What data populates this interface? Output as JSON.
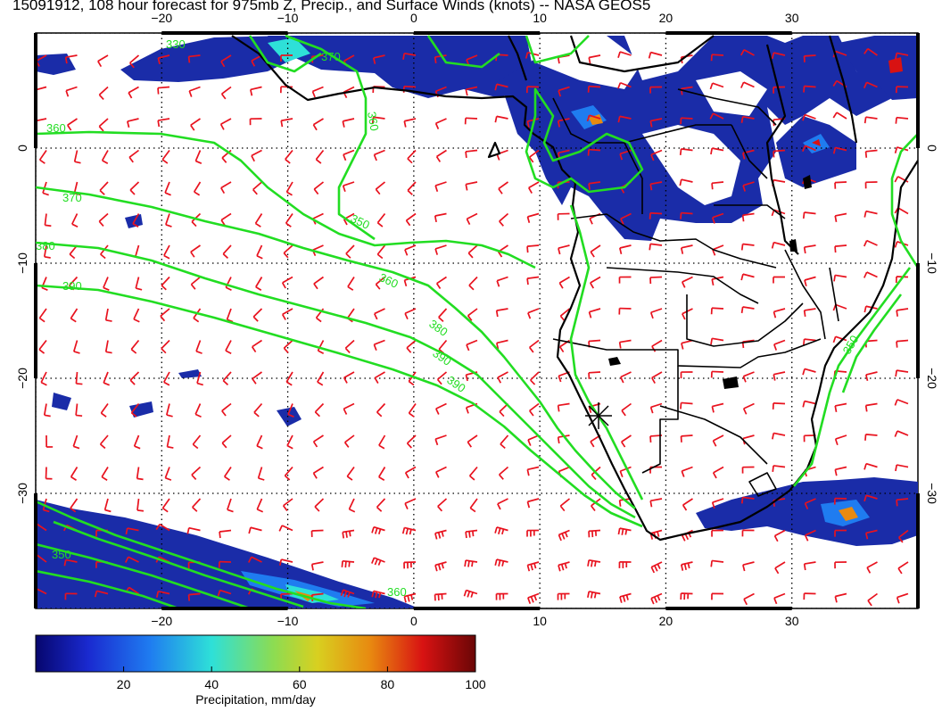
{
  "title": "15091912, 108 hour forecast for 975mb Z, Precip., and Surface Winds (knots) -- NASA GEOS5",
  "map": {
    "lon_range": [
      -30,
      40
    ],
    "lat_range": [
      -40,
      10
    ],
    "lon_ticks": [
      {
        "value": -20,
        "label": "−20"
      },
      {
        "value": -10,
        "label": "−10"
      },
      {
        "value": 0,
        "label": "0"
      },
      {
        "value": 10,
        "label": "10"
      },
      {
        "value": 20,
        "label": "20"
      },
      {
        "value": 30,
        "label": "30"
      }
    ],
    "lat_ticks": [
      {
        "value": 0,
        "label": "0"
      },
      {
        "value": -10,
        "label": "−10"
      },
      {
        "value": -20,
        "label": "−20"
      },
      {
        "value": -30,
        "label": "−30"
      }
    ],
    "contour_labels": [
      "330",
      "370",
      "360",
      "350",
      "370",
      "380",
      "390",
      "360",
      "380",
      "390",
      "390",
      "360",
      "350",
      "360",
      "350"
    ],
    "station_marker": {
      "lon": 15,
      "lat": -23.5
    },
    "colors": {
      "precip_low": "#1a2ca8",
      "contour": "#22dd22",
      "wind_barb": "#e8121e",
      "coast": "#000000"
    }
  },
  "colorbar": {
    "caption": "Precipitation, mm/day",
    "range": [
      0,
      100
    ],
    "tick_labels": [
      "20",
      "40",
      "60",
      "80",
      "100"
    ],
    "tick_values": [
      20,
      40,
      60,
      80,
      100
    ],
    "colors": [
      "#06066e",
      "#1a2ad0",
      "#1f7cf0",
      "#2ee0d8",
      "#8cdc52",
      "#d8d020",
      "#e88a10",
      "#d81212",
      "#6a0606"
    ]
  }
}
